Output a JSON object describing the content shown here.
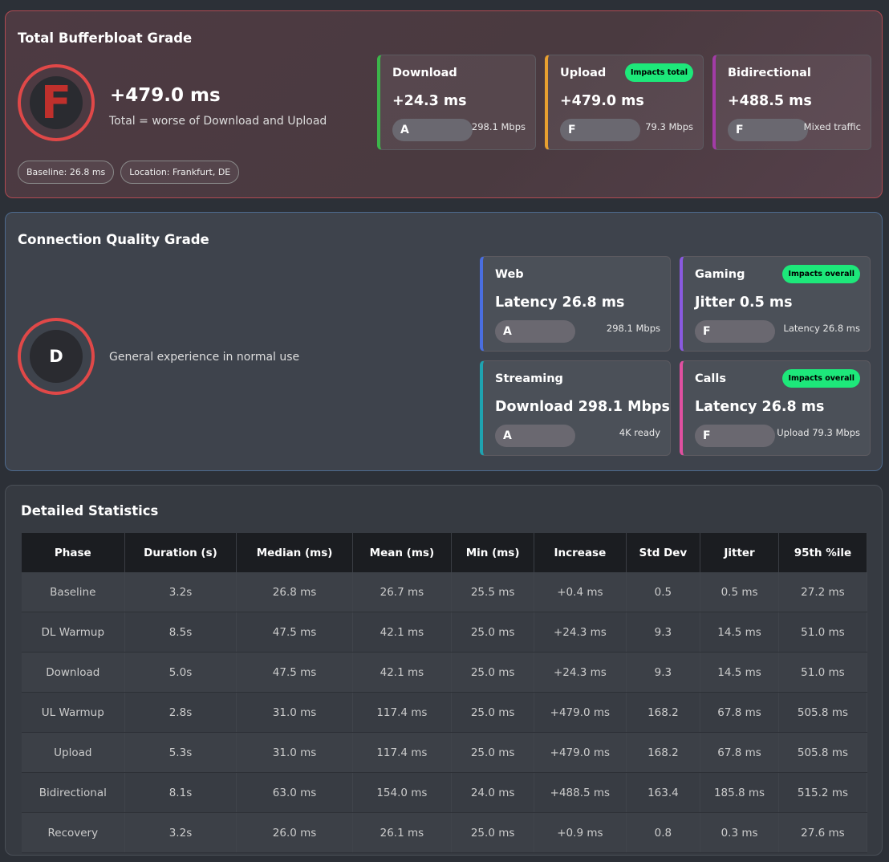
{
  "bufferbloat": {
    "title": "Total Bufferbloat Grade",
    "grade": "F",
    "value": "+479.0 ms",
    "subtitle": "Total = worse of Download and Upload",
    "chips": [
      "Baseline: 26.8 ms",
      "Location: Frankfurt, DE"
    ],
    "cards": [
      {
        "label": "Download",
        "value": "+24.3 ms",
        "grade": "A",
        "note": "298.1 Mbps",
        "color": "#3cb54a"
      },
      {
        "label": "Upload",
        "badge": "Impacts total",
        "value": "+479.0 ms",
        "grade": "F",
        "note": "79.3 Mbps",
        "color": "#e8a030"
      },
      {
        "label": "Bidirectional",
        "value": "+488.5 ms",
        "grade": "F",
        "note": "Mixed traffic",
        "color": "#a23ca6"
      }
    ]
  },
  "quality": {
    "title": "Connection Quality Grade",
    "grade": "D",
    "subtitle": "General experience in normal use",
    "cards": [
      {
        "label": "Web",
        "value": "Latency 26.8 ms",
        "grade": "A",
        "note": "298.1 Mbps",
        "color": "#4a6ee0"
      },
      {
        "label": "Gaming",
        "badge": "Impacts overall",
        "value": "Jitter 0.5 ms",
        "grade": "F",
        "note": "Latency 26.8 ms",
        "color": "#8a5ae0"
      },
      {
        "label": "Streaming",
        "value": "Download 298.1 Mbps",
        "grade": "A",
        "note": "4K ready",
        "color": "#1fa3b0"
      },
      {
        "label": "Calls",
        "badge": "Impacts overall",
        "value": "Latency 26.8 ms",
        "grade": "F",
        "note": "Upload 79.3 Mbps",
        "color": "#e050a0"
      }
    ]
  },
  "stats": {
    "title": "Detailed Statistics",
    "columns": [
      "Phase",
      "Duration (s)",
      "Median (ms)",
      "Mean (ms)",
      "Min (ms)",
      "Increase",
      "Std Dev",
      "Jitter",
      "95th %ile"
    ],
    "rows": [
      [
        "Baseline",
        "3.2s",
        "26.8 ms",
        "26.7 ms",
        "25.5 ms",
        "+0.4 ms",
        "0.5",
        "0.5 ms",
        "27.2 ms"
      ],
      [
        "DL Warmup",
        "8.5s",
        "47.5 ms",
        "42.1 ms",
        "25.0 ms",
        "+24.3 ms",
        "9.3",
        "14.5 ms",
        "51.0 ms"
      ],
      [
        "Download",
        "5.0s",
        "47.5 ms",
        "42.1 ms",
        "25.0 ms",
        "+24.3 ms",
        "9.3",
        "14.5 ms",
        "51.0 ms"
      ],
      [
        "UL Warmup",
        "2.8s",
        "31.0 ms",
        "117.4 ms",
        "25.0 ms",
        "+479.0 ms",
        "168.2",
        "67.8 ms",
        "505.8 ms"
      ],
      [
        "Upload",
        "5.3s",
        "31.0 ms",
        "117.4 ms",
        "25.0 ms",
        "+479.0 ms",
        "168.2",
        "67.8 ms",
        "505.8 ms"
      ],
      [
        "Bidirectional",
        "8.1s",
        "63.0 ms",
        "154.0 ms",
        "24.0 ms",
        "+488.5 ms",
        "163.4",
        "185.8 ms",
        "515.2 ms"
      ],
      [
        "Recovery",
        "3.2s",
        "26.0 ms",
        "26.1 ms",
        "25.0 ms",
        "+0.9 ms",
        "0.8",
        "0.3 ms",
        "27.6 ms"
      ]
    ]
  }
}
